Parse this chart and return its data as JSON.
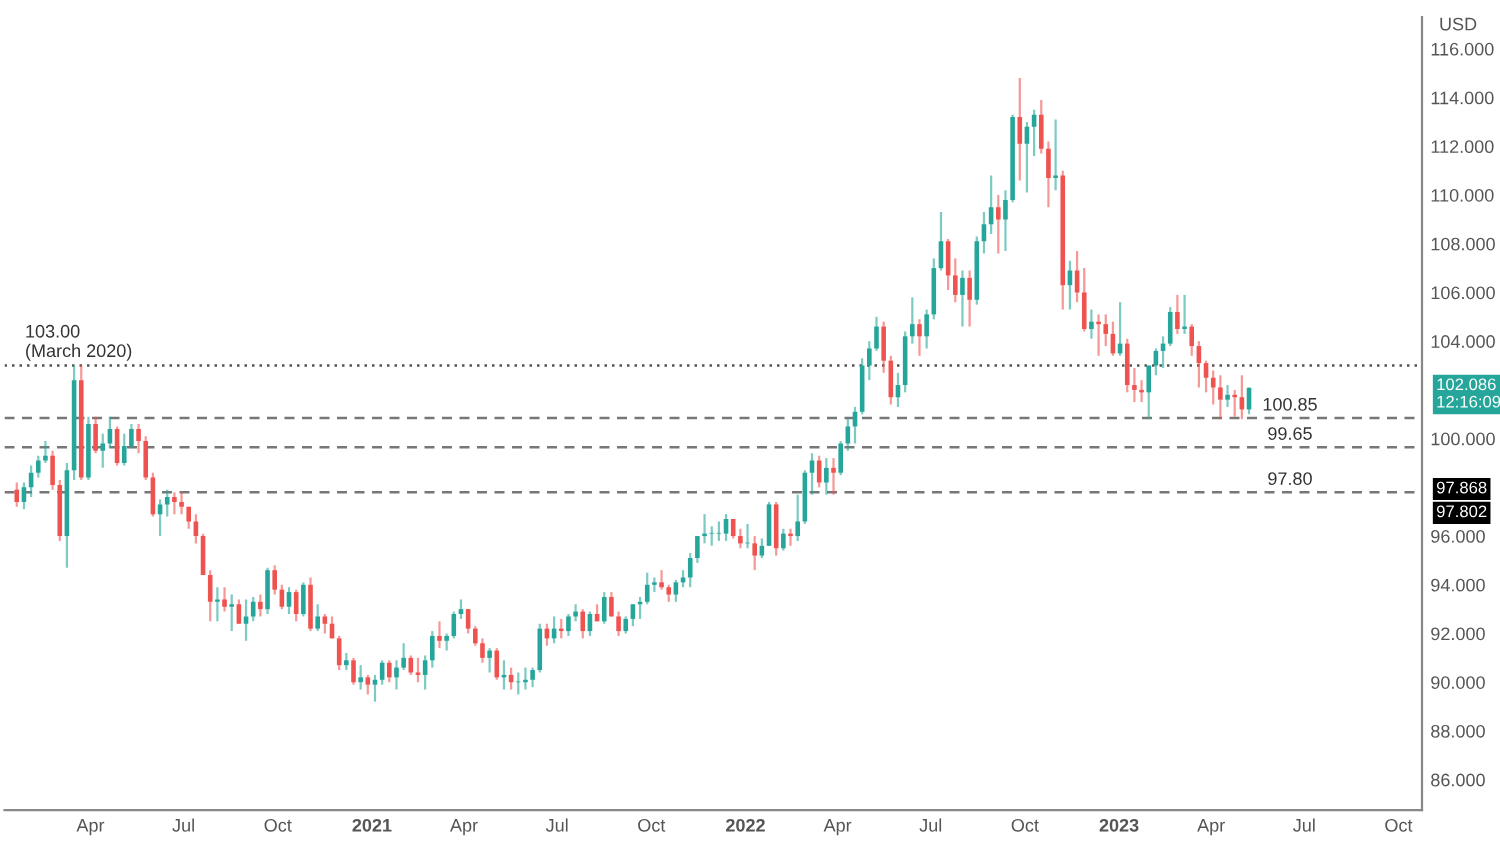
{
  "chart_data": {
    "type": "candlestick",
    "ylabel": "USD",
    "x": [
      "2020-01-20",
      "2020-01-27",
      "2020-02-03",
      "2020-02-10",
      "2020-02-17",
      "2020-02-24",
      "2020-03-02",
      "2020-03-09",
      "2020-03-16",
      "2020-03-23",
      "2020-03-30",
      "2020-04-06",
      "2020-04-13",
      "2020-04-20",
      "2020-04-27",
      "2020-05-04",
      "2020-05-11",
      "2020-05-18",
      "2020-05-25",
      "2020-06-01",
      "2020-06-08",
      "2020-06-15",
      "2020-06-22",
      "2020-06-29",
      "2020-07-06",
      "2020-07-13",
      "2020-07-20",
      "2020-07-27",
      "2020-08-03",
      "2020-08-10",
      "2020-08-17",
      "2020-08-24",
      "2020-08-31",
      "2020-09-07",
      "2020-09-14",
      "2020-09-21",
      "2020-09-28",
      "2020-10-05",
      "2020-10-12",
      "2020-10-19",
      "2020-10-26",
      "2020-11-02",
      "2020-11-09",
      "2020-11-16",
      "2020-11-23",
      "2020-11-30",
      "2020-12-07",
      "2020-12-14",
      "2020-12-21",
      "2020-12-28",
      "2021-01-04",
      "2021-01-11",
      "2021-01-18",
      "2021-01-25",
      "2021-02-01",
      "2021-02-08",
      "2021-02-15",
      "2021-02-22",
      "2021-03-01",
      "2021-03-08",
      "2021-03-15",
      "2021-03-22",
      "2021-03-29",
      "2021-04-05",
      "2021-04-12",
      "2021-04-19",
      "2021-04-26",
      "2021-05-03",
      "2021-05-10",
      "2021-05-17",
      "2021-05-24",
      "2021-05-31",
      "2021-06-07",
      "2021-06-14",
      "2021-06-21",
      "2021-06-28",
      "2021-07-05",
      "2021-07-12",
      "2021-07-19",
      "2021-07-26",
      "2021-08-02",
      "2021-08-09",
      "2021-08-16",
      "2021-08-23",
      "2021-08-30",
      "2021-09-06",
      "2021-09-13",
      "2021-09-20",
      "2021-09-27",
      "2021-10-04",
      "2021-10-11",
      "2021-10-18",
      "2021-10-25",
      "2021-11-01",
      "2021-11-08",
      "2021-11-15",
      "2021-11-22",
      "2021-11-29",
      "2021-12-06",
      "2021-12-13",
      "2021-12-20",
      "2021-12-27",
      "2022-01-03",
      "2022-01-10",
      "2022-01-17",
      "2022-01-24",
      "2022-01-31",
      "2022-02-07",
      "2022-02-14",
      "2022-02-21",
      "2022-02-28",
      "2022-03-07",
      "2022-03-14",
      "2022-03-21",
      "2022-03-28",
      "2022-04-04",
      "2022-04-11",
      "2022-04-18",
      "2022-04-25",
      "2022-05-02",
      "2022-05-09",
      "2022-05-16",
      "2022-05-23",
      "2022-05-30",
      "2022-06-06",
      "2022-06-13",
      "2022-06-20",
      "2022-06-27",
      "2022-07-04",
      "2022-07-11",
      "2022-07-18",
      "2022-07-25",
      "2022-08-01",
      "2022-08-08",
      "2022-08-15",
      "2022-08-22",
      "2022-08-29",
      "2022-09-05",
      "2022-09-12",
      "2022-09-19",
      "2022-09-26",
      "2022-10-03",
      "2022-10-10",
      "2022-10-17",
      "2022-10-24",
      "2022-10-31",
      "2022-11-07",
      "2022-11-14",
      "2022-11-21",
      "2022-11-28",
      "2022-12-05",
      "2022-12-12",
      "2022-12-19",
      "2022-12-26",
      "2023-01-02",
      "2023-01-09",
      "2023-01-16",
      "2023-01-23",
      "2023-01-30",
      "2023-02-06",
      "2023-02-13",
      "2023-02-20",
      "2023-02-27",
      "2023-03-06",
      "2023-03-13",
      "2023-03-20",
      "2023-03-27",
      "2023-04-03",
      "2023-04-10",
      "2023-04-17",
      "2023-04-24",
      "2023-05-01",
      "2023-05-08"
    ],
    "ohlc": [
      [
        97.9,
        98.2,
        97.2,
        97.4
      ],
      [
        97.4,
        98.2,
        97.1,
        98.0
      ],
      [
        98.0,
        98.9,
        97.6,
        98.6
      ],
      [
        98.6,
        99.3,
        98.4,
        99.1
      ],
      [
        99.1,
        99.9,
        99.0,
        99.3
      ],
      [
        99.3,
        99.5,
        97.9,
        98.1
      ],
      [
        98.1,
        98.3,
        95.8,
        96.0
      ],
      [
        96.0,
        99.0,
        94.7,
        98.7
      ],
      [
        98.7,
        103.0,
        98.3,
        102.4
      ],
      [
        102.4,
        103.0,
        98.3,
        98.4
      ],
      [
        98.4,
        100.9,
        98.3,
        100.6
      ],
      [
        100.6,
        100.9,
        99.4,
        99.5
      ],
      [
        99.5,
        100.2,
        98.8,
        99.8
      ],
      [
        99.8,
        100.9,
        99.6,
        100.4
      ],
      [
        100.4,
        100.5,
        98.9,
        99.0
      ],
      [
        99.0,
        100.2,
        98.9,
        99.7
      ],
      [
        99.7,
        100.6,
        99.6,
        100.4
      ],
      [
        100.4,
        100.6,
        99.4,
        99.9
      ],
      [
        99.9,
        100.1,
        98.3,
        98.4
      ],
      [
        98.4,
        98.6,
        96.8,
        96.9
      ],
      [
        96.9,
        97.5,
        96.0,
        97.3
      ],
      [
        97.3,
        97.9,
        96.8,
        97.6
      ],
      [
        97.6,
        97.8,
        96.9,
        97.4
      ],
      [
        97.4,
        97.8,
        96.9,
        97.2
      ],
      [
        97.2,
        97.2,
        96.3,
        96.6
      ],
      [
        96.6,
        96.9,
        95.7,
        96.0
      ],
      [
        96.0,
        96.1,
        94.4,
        94.4
      ],
      [
        94.4,
        94.6,
        92.5,
        93.3
      ],
      [
        93.3,
        93.9,
        92.5,
        93.4
      ],
      [
        93.4,
        93.9,
        92.9,
        93.1
      ],
      [
        93.1,
        93.6,
        92.1,
        93.2
      ],
      [
        93.2,
        93.4,
        92.4,
        92.4
      ],
      [
        92.4,
        93.4,
        91.7,
        92.7
      ],
      [
        92.7,
        93.5,
        92.5,
        93.3
      ],
      [
        93.3,
        93.6,
        92.7,
        93.0
      ],
      [
        93.0,
        94.7,
        92.8,
        94.6
      ],
      [
        94.6,
        94.8,
        93.6,
        93.8
      ],
      [
        93.8,
        94.0,
        93.0,
        93.1
      ],
      [
        93.1,
        93.9,
        92.8,
        93.7
      ],
      [
        93.7,
        93.8,
        92.5,
        92.8
      ],
      [
        92.8,
        94.1,
        92.7,
        94.0
      ],
      [
        94.0,
        94.3,
        92.1,
        92.2
      ],
      [
        92.2,
        93.2,
        92.1,
        92.7
      ],
      [
        92.7,
        92.8,
        92.0,
        92.4
      ],
      [
        92.4,
        92.7,
        91.8,
        91.8
      ],
      [
        91.8,
        91.9,
        90.5,
        90.7
      ],
      [
        90.7,
        91.2,
        90.5,
        90.9
      ],
      [
        90.9,
        91.0,
        89.9,
        90.0
      ],
      [
        90.0,
        90.7,
        89.7,
        90.2
      ],
      [
        90.2,
        90.3,
        89.5,
        89.9
      ],
      [
        89.9,
        90.3,
        89.2,
        90.1
      ],
      [
        90.1,
        90.9,
        89.9,
        90.8
      ],
      [
        90.8,
        90.9,
        90.0,
        90.2
      ],
      [
        90.2,
        90.9,
        89.7,
        90.6
      ],
      [
        90.6,
        91.6,
        90.5,
        91.0
      ],
      [
        91.0,
        91.1,
        90.3,
        90.4
      ],
      [
        90.4,
        91.0,
        90.0,
        90.3
      ],
      [
        90.3,
        91.1,
        89.7,
        90.9
      ],
      [
        90.9,
        92.1,
        90.6,
        91.9
      ],
      [
        91.9,
        92.5,
        91.4,
        91.7
      ],
      [
        91.7,
        92.0,
        91.3,
        91.9
      ],
      [
        91.9,
        92.9,
        91.8,
        92.8
      ],
      [
        92.8,
        93.4,
        92.6,
        93.0
      ],
      [
        93.0,
        93.0,
        92.0,
        92.2
      ],
      [
        92.2,
        92.3,
        91.5,
        91.6
      ],
      [
        91.6,
        91.8,
        90.8,
        91.0
      ],
      [
        91.0,
        91.4,
        90.4,
        91.3
      ],
      [
        91.3,
        91.4,
        90.1,
        90.2
      ],
      [
        90.2,
        90.9,
        89.7,
        90.3
      ],
      [
        90.3,
        90.6,
        89.7,
        90.0
      ],
      [
        90.0,
        90.4,
        89.5,
        90.0
      ],
      [
        90.0,
        90.6,
        89.7,
        90.1
      ],
      [
        90.1,
        90.6,
        89.8,
        90.5
      ],
      [
        90.5,
        92.4,
        90.4,
        92.2
      ],
      [
        92.2,
        92.4,
        91.5,
        91.8
      ],
      [
        91.8,
        92.7,
        91.6,
        92.2
      ],
      [
        92.2,
        92.6,
        91.8,
        92.1
      ],
      [
        92.1,
        92.8,
        91.9,
        92.7
      ],
      [
        92.7,
        93.2,
        92.5,
        92.9
      ],
      [
        92.9,
        93.0,
        91.8,
        92.1
      ],
      [
        92.1,
        92.9,
        91.9,
        92.8
      ],
      [
        92.8,
        93.2,
        92.5,
        92.5
      ],
      [
        92.5,
        93.7,
        92.4,
        93.5
      ],
      [
        93.5,
        93.7,
        92.7,
        92.7
      ],
      [
        92.7,
        92.9,
        91.9,
        92.1
      ],
      [
        92.1,
        92.7,
        92.0,
        92.6
      ],
      [
        92.6,
        93.2,
        92.3,
        93.2
      ],
      [
        93.2,
        93.5,
        92.6,
        93.3
      ],
      [
        93.3,
        94.5,
        93.2,
        94.0
      ],
      [
        94.0,
        94.3,
        93.7,
        94.1
      ],
      [
        94.1,
        94.6,
        93.8,
        93.9
      ],
      [
        93.9,
        94.0,
        93.3,
        93.6
      ],
      [
        93.6,
        94.2,
        93.3,
        94.1
      ],
      [
        94.1,
        94.6,
        93.9,
        94.3
      ],
      [
        94.3,
        95.3,
        93.9,
        95.1
      ],
      [
        95.1,
        96.0,
        94.9,
        96.0
      ],
      [
        96.0,
        96.9,
        95.7,
        96.1
      ],
      [
        96.1,
        96.4,
        95.6,
        96.1
      ],
      [
        96.1,
        96.6,
        95.8,
        96.1
      ],
      [
        96.1,
        96.9,
        95.8,
        96.7
      ],
      [
        96.7,
        96.7,
        95.9,
        96.0
      ],
      [
        96.0,
        96.3,
        95.5,
        95.7
      ],
      [
        95.7,
        96.5,
        95.5,
        95.7
      ],
      [
        95.7,
        96.0,
        94.6,
        95.2
      ],
      [
        95.2,
        95.9,
        95.1,
        95.6
      ],
      [
        95.6,
        97.4,
        95.6,
        97.3
      ],
      [
        97.3,
        97.4,
        95.2,
        95.5
      ],
      [
        95.5,
        96.3,
        95.4,
        96.1
      ],
      [
        96.1,
        96.3,
        95.6,
        96.0
      ],
      [
        96.0,
        97.7,
        95.8,
        96.6
      ],
      [
        96.6,
        98.7,
        96.5,
        98.6
      ],
      [
        98.6,
        99.4,
        97.7,
        99.1
      ],
      [
        99.1,
        99.3,
        98.0,
        98.2
      ],
      [
        98.2,
        99.2,
        97.7,
        98.8
      ],
      [
        98.8,
        99.2,
        97.7,
        98.6
      ],
      [
        98.6,
        99.9,
        98.5,
        99.8
      ],
      [
        99.8,
        100.8,
        99.5,
        100.5
      ],
      [
        100.5,
        101.3,
        99.8,
        101.1
      ],
      [
        101.1,
        103.3,
        101.0,
        103.0
      ],
      [
        103.0,
        104.0,
        102.4,
        103.7
      ],
      [
        103.7,
        105.0,
        103.6,
        104.6
      ],
      [
        104.6,
        104.8,
        102.7,
        103.2
      ],
      [
        103.2,
        103.4,
        101.4,
        101.7
      ],
      [
        101.7,
        102.7,
        101.3,
        102.2
      ],
      [
        102.2,
        104.4,
        101.9,
        104.2
      ],
      [
        104.2,
        105.8,
        103.9,
        104.7
      ],
      [
        104.7,
        104.9,
        103.4,
        104.2
      ],
      [
        104.2,
        105.3,
        103.7,
        105.1
      ],
      [
        105.1,
        107.4,
        104.9,
        107.0
      ],
      [
        107.0,
        109.3,
        106.9,
        108.1
      ],
      [
        108.1,
        108.2,
        106.1,
        106.7
      ],
      [
        106.7,
        107.4,
        105.6,
        105.9
      ],
      [
        105.9,
        106.9,
        104.6,
        106.6
      ],
      [
        106.6,
        106.9,
        104.6,
        105.7
      ],
      [
        105.7,
        108.3,
        105.5,
        108.1
      ],
      [
        108.1,
        109.3,
        107.6,
        108.8
      ],
      [
        108.8,
        110.8,
        108.4,
        109.5
      ],
      [
        109.5,
        110.0,
        107.6,
        109.0
      ],
      [
        109.0,
        110.2,
        107.7,
        109.8
      ],
      [
        109.8,
        113.3,
        109.7,
        113.2
      ],
      [
        113.2,
        114.8,
        110.6,
        112.1
      ],
      [
        112.1,
        113.0,
        110.1,
        112.8
      ],
      [
        112.8,
        113.5,
        111.6,
        113.3
      ],
      [
        113.3,
        113.9,
        111.7,
        111.9
      ],
      [
        111.9,
        112.2,
        109.5,
        110.7
      ],
      [
        110.7,
        113.1,
        110.2,
        110.8
      ],
      [
        110.8,
        111.0,
        105.3,
        106.3
      ],
      [
        106.3,
        107.3,
        105.3,
        106.9
      ],
      [
        106.9,
        107.7,
        105.6,
        106.0
      ],
      [
        106.0,
        107.0,
        104.4,
        104.5
      ],
      [
        104.5,
        105.3,
        104.1,
        104.8
      ],
      [
        104.8,
        105.1,
        103.4,
        104.7
      ],
      [
        104.7,
        105.1,
        103.8,
        104.3
      ],
      [
        104.3,
        104.8,
        103.4,
        103.5
      ],
      [
        103.5,
        105.6,
        103.4,
        103.9
      ],
      [
        103.9,
        104.1,
        101.9,
        102.2
      ],
      [
        102.2,
        102.9,
        101.5,
        102.0
      ],
      [
        102.0,
        102.4,
        101.5,
        101.9
      ],
      [
        101.9,
        103.0,
        100.8,
        103.0
      ],
      [
        103.0,
        103.7,
        102.6,
        103.6
      ],
      [
        103.6,
        104.2,
        102.9,
        103.9
      ],
      [
        103.9,
        105.4,
        103.8,
        105.2
      ],
      [
        105.2,
        105.9,
        104.3,
        104.5
      ],
      [
        104.5,
        105.9,
        104.3,
        104.6
      ],
      [
        104.6,
        104.7,
        103.4,
        103.8
      ],
      [
        103.8,
        104.0,
        102.1,
        103.1
      ],
      [
        103.1,
        103.2,
        101.9,
        102.5
      ],
      [
        102.5,
        102.8,
        101.4,
        102.1
      ],
      [
        102.1,
        102.6,
        100.8,
        101.6
      ],
      [
        101.6,
        102.2,
        101.3,
        101.8
      ],
      [
        101.8,
        102.0,
        100.9,
        101.7
      ],
      [
        101.7,
        102.6,
        100.8,
        101.2
      ],
      [
        101.2,
        102.1,
        101.0,
        102.086
      ]
    ],
    "xlim": [
      "2020-01-08",
      "2023-10-24"
    ],
    "xticks": [
      {
        "value": "2020-04-01",
        "label": "Apr"
      },
      {
        "value": "2020-07-01",
        "label": "Jul"
      },
      {
        "value": "2020-10-01",
        "label": "Oct"
      },
      {
        "value": "2021-01-01",
        "label": "2021"
      },
      {
        "value": "2021-04-01",
        "label": "Apr"
      },
      {
        "value": "2021-07-01",
        "label": "Jul"
      },
      {
        "value": "2021-10-01",
        "label": "Oct"
      },
      {
        "value": "2022-01-01",
        "label": "2022"
      },
      {
        "value": "2022-04-01",
        "label": "Apr"
      },
      {
        "value": "2022-07-01",
        "label": "Jul"
      },
      {
        "value": "2022-10-01",
        "label": "Oct"
      },
      {
        "value": "2023-01-01",
        "label": "2023"
      },
      {
        "value": "2023-04-01",
        "label": "Apr"
      },
      {
        "value": "2023-07-01",
        "label": "Jul"
      },
      {
        "value": "2023-10-01",
        "label": "Oct"
      }
    ],
    "ylim": [
      84.75,
      117.3
    ],
    "yticks": [
      {
        "value": 86,
        "label": "86.000"
      },
      {
        "value": 88,
        "label": "88.000"
      },
      {
        "value": 90,
        "label": "90.000"
      },
      {
        "value": 92,
        "label": "92.000"
      },
      {
        "value": 94,
        "label": "94.000"
      },
      {
        "value": 96,
        "label": "96.000"
      },
      {
        "value": 100,
        "label": "100.000"
      },
      {
        "value": 104,
        "label": "104.000"
      },
      {
        "value": 106,
        "label": "106.000"
      },
      {
        "value": 108,
        "label": "108.000"
      },
      {
        "value": 110,
        "label": "110.000"
      },
      {
        "value": 112,
        "label": "112.000"
      },
      {
        "value": 114,
        "label": "114.000"
      },
      {
        "value": 116,
        "label": "116.000"
      }
    ],
    "ref_lines": [
      {
        "axis": "y",
        "value": 103.0,
        "label": "103.00\n(March 2020)",
        "line_style": "dotted",
        "color": "#555555"
      },
      {
        "axis": "y",
        "value": 100.85,
        "label": "100.85",
        "line_style": "dashed",
        "color": "#777777"
      },
      {
        "axis": "y",
        "value": 99.65,
        "label": "99.65",
        "line_style": "dashed",
        "color": "#777777"
      },
      {
        "axis": "y",
        "value": 97.8,
        "label": "97.80",
        "line_style": "dashed",
        "color": "#777777"
      }
    ],
    "annotations": [
      "102.086\n12:16:09",
      "97.868",
      "97.802"
    ],
    "grid": false
  }
}
